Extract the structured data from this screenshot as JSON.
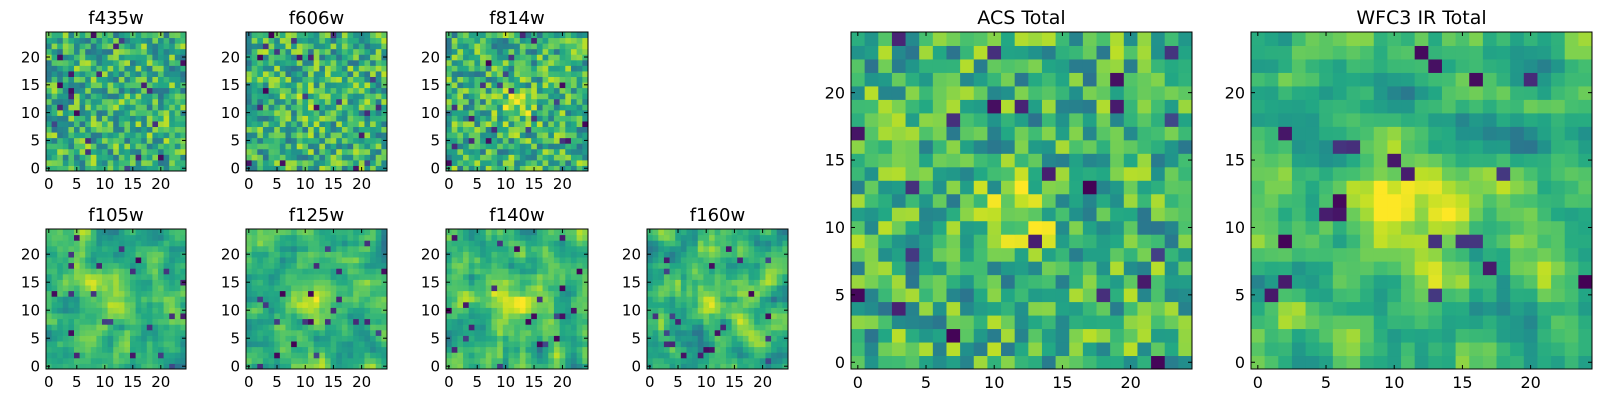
{
  "chart_data": [
    {
      "type": "heatmap",
      "title": "f435w",
      "xticks": [
        "0",
        "5",
        "10",
        "15",
        "20"
      ],
      "yticks": [
        "0",
        "5",
        "10",
        "15",
        "20"
      ],
      "xlim": [
        -0.5,
        24.5
      ],
      "ylim": [
        -0.5,
        24.5
      ],
      "grid_size": [
        25,
        25
      ],
      "colormap": "viridis",
      "texture": "noisy",
      "structure": "flat noise"
    },
    {
      "type": "heatmap",
      "title": "f606w",
      "xticks": [
        "0",
        "5",
        "10",
        "15",
        "20"
      ],
      "yticks": [
        "0",
        "5",
        "10",
        "15",
        "20"
      ],
      "xlim": [
        -0.5,
        24.5
      ],
      "ylim": [
        -0.5,
        24.5
      ],
      "grid_size": [
        25,
        25
      ],
      "colormap": "viridis",
      "texture": "noisy",
      "structure": "faint central source"
    },
    {
      "type": "heatmap",
      "title": "f814w",
      "xticks": [
        "0",
        "5",
        "10",
        "15",
        "20"
      ],
      "yticks": [
        "0",
        "5",
        "10",
        "15",
        "20"
      ],
      "xlim": [
        -0.5,
        24.5
      ],
      "ylim": [
        -0.5,
        24.5
      ],
      "grid_size": [
        25,
        25
      ],
      "colormap": "viridis",
      "texture": "noisy",
      "structure": "central bright source"
    },
    {
      "type": "heatmap",
      "title": "f105w",
      "xticks": [
        "0",
        "5",
        "10",
        "15",
        "20"
      ],
      "yticks": [
        "0",
        "5",
        "10",
        "15",
        "20"
      ],
      "xlim": [
        -0.5,
        24.5
      ],
      "ylim": [
        -0.5,
        24.5
      ],
      "grid_size": [
        25,
        25
      ],
      "colormap": "viridis",
      "texture": "smooth",
      "structure": "central bright source"
    },
    {
      "type": "heatmap",
      "title": "f125w",
      "xticks": [
        "0",
        "5",
        "10",
        "15",
        "20"
      ],
      "yticks": [
        "0",
        "5",
        "10",
        "15",
        "20"
      ],
      "xlim": [
        -0.5,
        24.5
      ],
      "ylim": [
        -0.5,
        24.5
      ],
      "grid_size": [
        25,
        25
      ],
      "colormap": "viridis",
      "texture": "smooth",
      "structure": "central bright source"
    },
    {
      "type": "heatmap",
      "title": "f140w",
      "xticks": [
        "0",
        "5",
        "10",
        "15",
        "20"
      ],
      "yticks": [
        "0",
        "5",
        "10",
        "15",
        "20"
      ],
      "xlim": [
        -0.5,
        24.5
      ],
      "ylim": [
        -0.5,
        24.5
      ],
      "grid_size": [
        25,
        25
      ],
      "colormap": "viridis",
      "texture": "smooth",
      "structure": "central bright source"
    },
    {
      "type": "heatmap",
      "title": "f160w",
      "xticks": [
        "0",
        "5",
        "10",
        "15",
        "20"
      ],
      "yticks": [
        "0",
        "5",
        "10",
        "15",
        "20"
      ],
      "xlim": [
        -0.5,
        24.5
      ],
      "ylim": [
        -0.5,
        24.5
      ],
      "grid_size": [
        25,
        25
      ],
      "colormap": "viridis",
      "texture": "smooth",
      "structure": "central bright source"
    },
    {
      "type": "heatmap",
      "title": "ACS Total",
      "xticks": [
        "0",
        "5",
        "10",
        "15",
        "20"
      ],
      "yticks": [
        "0",
        "5",
        "10",
        "15",
        "20"
      ],
      "xlim": [
        -0.5,
        24.5
      ],
      "ylim": [
        -0.5,
        24.5
      ],
      "grid_size": [
        25,
        25
      ],
      "colormap": "viridis",
      "texture": "noisy",
      "structure": "bright cross-shaped source near x=12, y=11"
    },
    {
      "type": "heatmap",
      "title": "WFC3 IR Total",
      "xticks": [
        "0",
        "5",
        "10",
        "15",
        "20"
      ],
      "yticks": [
        "0",
        "5",
        "10",
        "15",
        "20"
      ],
      "xlim": [
        -0.5,
        24.5
      ],
      "ylim": [
        -0.5,
        24.5
      ],
      "grid_size": [
        25,
        25
      ],
      "colormap": "viridis",
      "texture": "smooth",
      "structure": "broad bright source near x=12, y=12; dark patch near x=5, y=5"
    }
  ]
}
